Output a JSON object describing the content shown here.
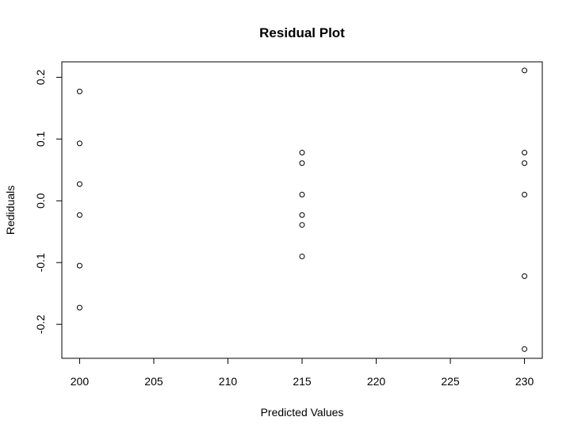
{
  "chart_data": {
    "type": "scatter",
    "title": "Residual Plot",
    "xlabel": "Predicted Values",
    "ylabel": "Rediduals",
    "xlim": [
      198.8,
      231.2
    ],
    "ylim": [
      -0.255,
      0.225
    ],
    "xticks": [
      "200",
      "205",
      "210",
      "215",
      "220",
      "225",
      "230"
    ],
    "yticks": [
      "-0.2",
      "-0.1",
      "0.0",
      "0.1",
      "0.2"
    ],
    "grid": false,
    "marker": "open-circle",
    "points": [
      {
        "x": 200,
        "y": 0.177
      },
      {
        "x": 200,
        "y": 0.093
      },
      {
        "x": 200,
        "y": 0.027
      },
      {
        "x": 200,
        "y": -0.023
      },
      {
        "x": 200,
        "y": -0.105
      },
      {
        "x": 200,
        "y": -0.173
      },
      {
        "x": 215,
        "y": 0.078
      },
      {
        "x": 215,
        "y": 0.061
      },
      {
        "x": 215,
        "y": 0.01
      },
      {
        "x": 215,
        "y": -0.023
      },
      {
        "x": 215,
        "y": -0.039
      },
      {
        "x": 215,
        "y": -0.09
      },
      {
        "x": 230,
        "y": 0.211
      },
      {
        "x": 230,
        "y": 0.078
      },
      {
        "x": 230,
        "y": 0.061
      },
      {
        "x": 230,
        "y": 0.01
      },
      {
        "x": 230,
        "y": -0.122
      },
      {
        "x": 230,
        "y": -0.24
      }
    ]
  }
}
